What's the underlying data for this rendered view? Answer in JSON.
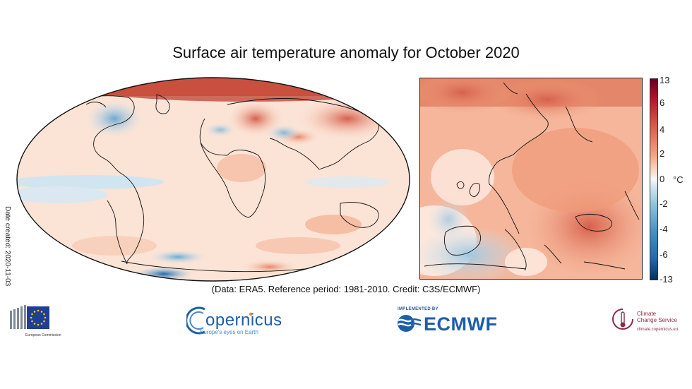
{
  "title": "Surface air temperature anomaly for October 2020",
  "date_created": "Date created: 2020-11-03",
  "credit": "(Data: ERA5.  Reference period: 1981-2010.  Credit: C3S/ECMWF)",
  "colorbar": {
    "unit": "°C",
    "ticks": [
      "13",
      "6",
      "4",
      "2",
      "0",
      "-2",
      "-4",
      "-6",
      "-13"
    ],
    "colors": [
      "#67001f",
      "#b2182b",
      "#d6604d",
      "#f4a582",
      "#fddbc7",
      "#f7f7f7",
      "#d1e5f0",
      "#92c5de",
      "#4393c3",
      "#2166ac",
      "#053061"
    ]
  },
  "logos": {
    "european_commission": "European Commission",
    "copernicus": "opernicus",
    "copernicus_tagline": "Europe's eyes on Earth",
    "ecmwf_implemented_by": "IMPLEMENTED BY",
    "ecmwf": "ECMWF",
    "c3s_line1": "Climate",
    "c3s_line2": "Change Service",
    "c3s_url": "climate.copernicus.eu"
  }
}
